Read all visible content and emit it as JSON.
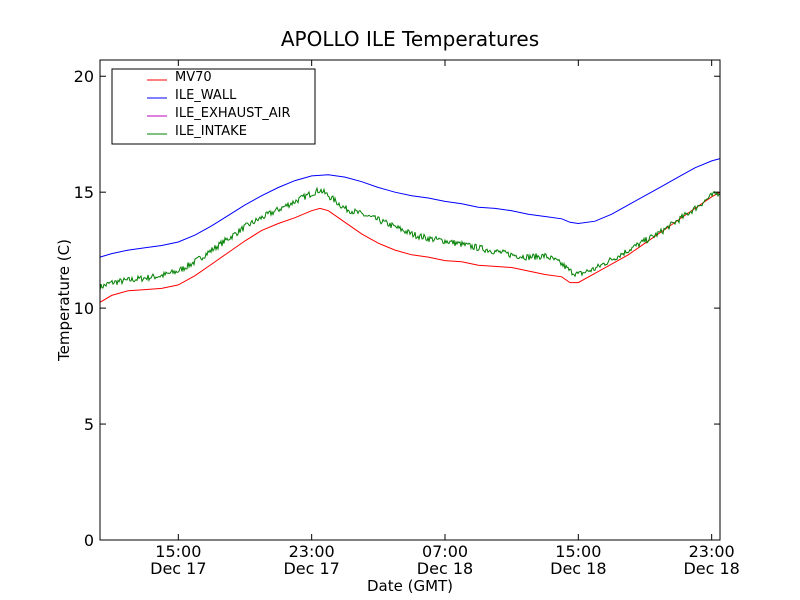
{
  "chart_data": {
    "type": "line",
    "title": "APOLLO ILE Temperatures",
    "xlabel": "Date (GMT)",
    "ylabel": "Temperature (C)",
    "x_unit": "hours since Dec 17 00:00 GMT",
    "xlim": [
      10.3,
      47.5
    ],
    "ylim": [
      0,
      20.7
    ],
    "yticks": [
      0,
      5,
      10,
      15,
      20
    ],
    "xticks": [
      {
        "value": 15,
        "time": "15:00",
        "date": "Dec 17"
      },
      {
        "value": 23,
        "time": "23:00",
        "date": "Dec 17"
      },
      {
        "value": 31,
        "time": "07:00",
        "date": "Dec 18"
      },
      {
        "value": 39,
        "time": "15:00",
        "date": "Dec 18"
      },
      {
        "value": 47,
        "time": "23:00",
        "date": "Dec 18"
      }
    ],
    "legend_position": "top-left",
    "series": [
      {
        "name": "MV70",
        "color": "#ff0000",
        "noise": 0,
        "points": [
          [
            10.3,
            10.25
          ],
          [
            11,
            10.55
          ],
          [
            12,
            10.75
          ],
          [
            13,
            10.8
          ],
          [
            14,
            10.85
          ],
          [
            15,
            11.0
          ],
          [
            16,
            11.4
          ],
          [
            17,
            11.9
          ],
          [
            18,
            12.4
          ],
          [
            19,
            12.9
          ],
          [
            20,
            13.35
          ],
          [
            21,
            13.65
          ],
          [
            22,
            13.9
          ],
          [
            23,
            14.2
          ],
          [
            23.5,
            14.3
          ],
          [
            24,
            14.2
          ],
          [
            25,
            13.7
          ],
          [
            26,
            13.2
          ],
          [
            27,
            12.8
          ],
          [
            28,
            12.5
          ],
          [
            29,
            12.3
          ],
          [
            30,
            12.2
          ],
          [
            31,
            12.05
          ],
          [
            32,
            12.0
          ],
          [
            33,
            11.85
          ],
          [
            34,
            11.8
          ],
          [
            35,
            11.75
          ],
          [
            36,
            11.6
          ],
          [
            37,
            11.45
          ],
          [
            38,
            11.35
          ],
          [
            38.5,
            11.1
          ],
          [
            39,
            11.1
          ],
          [
            40,
            11.5
          ],
          [
            41,
            11.9
          ],
          [
            42,
            12.3
          ],
          [
            43,
            12.8
          ],
          [
            44,
            13.3
          ],
          [
            45,
            13.8
          ],
          [
            46,
            14.3
          ],
          [
            47,
            14.8
          ],
          [
            47.5,
            15.0
          ]
        ]
      },
      {
        "name": "ILE_WALL",
        "color": "#0000ff",
        "noise": 0,
        "points": [
          [
            10.3,
            12.2
          ],
          [
            11,
            12.35
          ],
          [
            12,
            12.5
          ],
          [
            13,
            12.6
          ],
          [
            14,
            12.7
          ],
          [
            15,
            12.85
          ],
          [
            16,
            13.15
          ],
          [
            17,
            13.55
          ],
          [
            18,
            14.0
          ],
          [
            19,
            14.45
          ],
          [
            20,
            14.85
          ],
          [
            21,
            15.2
          ],
          [
            22,
            15.5
          ],
          [
            23,
            15.7
          ],
          [
            24,
            15.75
          ],
          [
            25,
            15.65
          ],
          [
            26,
            15.45
          ],
          [
            27,
            15.2
          ],
          [
            28,
            15.0
          ],
          [
            29,
            14.85
          ],
          [
            30,
            14.75
          ],
          [
            31,
            14.6
          ],
          [
            32,
            14.5
          ],
          [
            33,
            14.35
          ],
          [
            34,
            14.3
          ],
          [
            35,
            14.2
          ],
          [
            36,
            14.05
          ],
          [
            37,
            13.95
          ],
          [
            38,
            13.85
          ],
          [
            38.5,
            13.7
          ],
          [
            39,
            13.65
          ],
          [
            40,
            13.75
          ],
          [
            41,
            14.05
          ],
          [
            42,
            14.45
          ],
          [
            43,
            14.85
          ],
          [
            44,
            15.25
          ],
          [
            45,
            15.65
          ],
          [
            46,
            16.05
          ],
          [
            47,
            16.35
          ],
          [
            47.5,
            16.45
          ]
        ]
      },
      {
        "name": "ILE_EXHAUST_AIR",
        "color": "#bf00bf",
        "noise": 0,
        "points": []
      },
      {
        "name": "ILE_INTAKE",
        "color": "#008000",
        "noise": 0.14,
        "points": [
          [
            10.3,
            10.9
          ],
          [
            11,
            11.1
          ],
          [
            12,
            11.2
          ],
          [
            13,
            11.3
          ],
          [
            14,
            11.4
          ],
          [
            15,
            11.6
          ],
          [
            16,
            12.0
          ],
          [
            17,
            12.5
          ],
          [
            18,
            13.0
          ],
          [
            19,
            13.5
          ],
          [
            20,
            13.9
          ],
          [
            21,
            14.25
          ],
          [
            22,
            14.6
          ],
          [
            23,
            14.95
          ],
          [
            23.5,
            15.1
          ],
          [
            24,
            14.85
          ],
          [
            25,
            14.3
          ],
          [
            26,
            14.05
          ],
          [
            27,
            13.8
          ],
          [
            28,
            13.5
          ],
          [
            29,
            13.2
          ],
          [
            30,
            13.0
          ],
          [
            31,
            12.9
          ],
          [
            32,
            12.75
          ],
          [
            33,
            12.6
          ],
          [
            34,
            12.45
          ],
          [
            35,
            12.3
          ],
          [
            36,
            12.2
          ],
          [
            37,
            12.25
          ],
          [
            37.5,
            12.1
          ],
          [
            38,
            11.9
          ],
          [
            38.5,
            11.6
          ],
          [
            39,
            11.45
          ],
          [
            40,
            11.7
          ],
          [
            41,
            12.1
          ],
          [
            42,
            12.5
          ],
          [
            43,
            12.9
          ],
          [
            44,
            13.3
          ],
          [
            45,
            13.8
          ],
          [
            46,
            14.3
          ],
          [
            47,
            14.85
          ],
          [
            47.5,
            15.0
          ]
        ]
      }
    ]
  }
}
